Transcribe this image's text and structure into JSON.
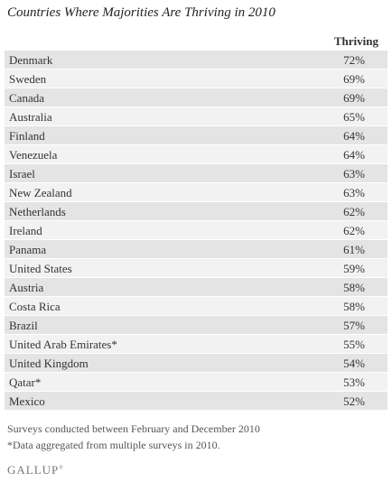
{
  "title": "Countries Where Majorities Are Thriving in 2010",
  "table": {
    "column_header": "Thriving",
    "rows": [
      {
        "country": "Denmark",
        "value": "72%"
      },
      {
        "country": "Sweden",
        "value": "69%"
      },
      {
        "country": "Canada",
        "value": "69%"
      },
      {
        "country": "Australia",
        "value": "65%"
      },
      {
        "country": "Finland",
        "value": "64%"
      },
      {
        "country": "Venezuela",
        "value": "64%"
      },
      {
        "country": "Israel",
        "value": "63%"
      },
      {
        "country": "New Zealand",
        "value": "63%"
      },
      {
        "country": "Netherlands",
        "value": "62%"
      },
      {
        "country": "Ireland",
        "value": "62%"
      },
      {
        "country": "Panama",
        "value": "61%"
      },
      {
        "country": "United States",
        "value": "59%"
      },
      {
        "country": "Austria",
        "value": "58%"
      },
      {
        "country": "Costa Rica",
        "value": "58%"
      },
      {
        "country": "Brazil",
        "value": "57%"
      },
      {
        "country": "United Arab Emirates*",
        "value": "55%"
      },
      {
        "country": "United Kingdom",
        "value": "54%"
      },
      {
        "country": "Qatar*",
        "value": "53%"
      },
      {
        "country": "Mexico",
        "value": "52%"
      }
    ]
  },
  "notes": [
    "Surveys conducted between February and December 2010",
    "*Data aggregated from multiple surveys in 2010."
  ],
  "logo": {
    "text": "GALLUP",
    "mark": "®"
  }
}
